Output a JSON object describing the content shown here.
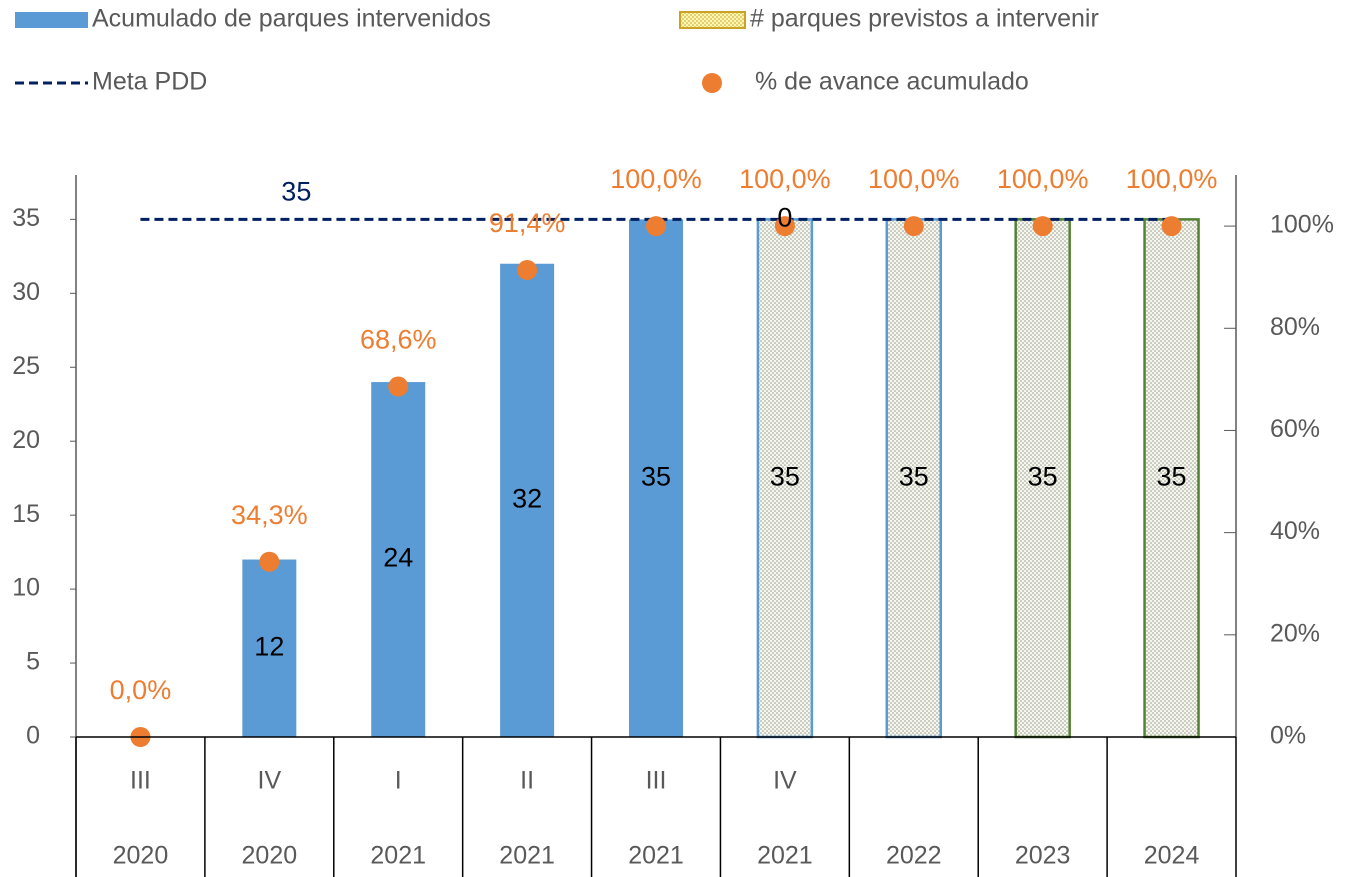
{
  "chart_data": {
    "type": "bar",
    "categories": [
      "III",
      "IV",
      "I",
      "II",
      "III",
      "IV",
      null,
      null,
      null
    ],
    "category_groups": [
      "2020",
      "2020",
      "2021",
      "2021",
      "2021",
      "2021",
      "2022",
      "2023",
      "2024"
    ],
    "ylim": [
      0,
      38
    ],
    "yticks": [
      0,
      5,
      10,
      15,
      20,
      25,
      30,
      35
    ],
    "y2lim": [
      0,
      110
    ],
    "y2ticks": [
      {
        "value": 0,
        "label": "0%"
      },
      {
        "value": 20,
        "label": "20%"
      },
      {
        "value": 40,
        "label": "40%"
      },
      {
        "value": 60,
        "label": "60%"
      },
      {
        "value": 80,
        "label": "80%"
      },
      {
        "value": 100,
        "label": "100%"
      }
    ],
    "series": [
      {
        "name": "Acumulado de parques intervenidos",
        "type": "bar",
        "color": "#5b9bd5",
        "values": [
          0,
          12,
          24,
          32,
          35,
          null,
          null,
          null,
          null
        ],
        "value_labels": [
          null,
          "12",
          "24",
          "32",
          "35",
          null,
          null,
          null,
          null
        ]
      },
      {
        "name": "# parques previstos a intervenir",
        "type": "bar",
        "color": "#bfbfbf",
        "pattern": "dots",
        "edgecolors": [
          null,
          null,
          null,
          null,
          null,
          "#5b9bd5",
          "#5b9bd5",
          "#548235",
          "#548235"
        ],
        "values": [
          null,
          null,
          null,
          null,
          null,
          35,
          35,
          35,
          35
        ],
        "value_labels": [
          null,
          null,
          null,
          null,
          null,
          "35",
          "35",
          "35",
          "35"
        ]
      },
      {
        "name": "Meta PDD",
        "type": "line",
        "color": "#002060",
        "linestyle": "dashed",
        "values": [
          35,
          35,
          35,
          35,
          35,
          35,
          35,
          35,
          35
        ],
        "value_labels": [
          null,
          "35",
          null,
          null,
          null,
          null,
          null,
          null,
          null
        ]
      },
      {
        "name": "% de avance acumulado",
        "type": "scatter",
        "axis": "y2",
        "color": "#ed7d31",
        "values": [
          0,
          34.3,
          68.6,
          91.4,
          100,
          100,
          100,
          100,
          100
        ],
        "value_labels": [
          "0,0%",
          "34,3%",
          "68,6%",
          "91,4%",
          "100,0%",
          "100,0%",
          "100,0%",
          "100,0%",
          "100,0%"
        ]
      }
    ],
    "annotations": [
      {
        "text": "0"
      }
    ]
  }
}
